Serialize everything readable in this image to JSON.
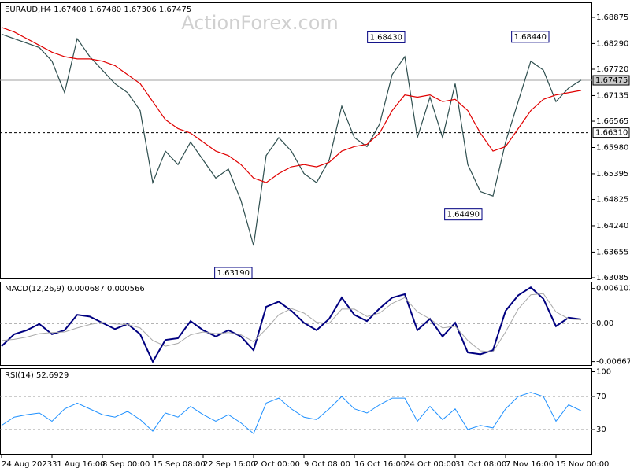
{
  "watermark": "ActionForex.com",
  "chart_data": [
    {
      "type": "line",
      "title": "EURAUD,H4  1.67408 1.67480 1.67306 1.67475",
      "ylim": [
        1.6305,
        1.69207
      ],
      "yticks": [
        1.68875,
        {
          "value": 1.6829,
          "label": "1.68290"
        },
        {
          "value": 1.6772,
          "label": "1.67720"
        },
        1.67135,
        1.66565,
        {
          "value": 1.6598,
          "label": "1.65980"
        },
        1.65395,
        1.64825,
        {
          "value": 1.6424,
          "label": "1.64240"
        },
        1.63655,
        1.63085
      ],
      "series": [
        {
          "color": "#2f4f4f",
          "values": [
            1.685,
            1.684,
            1.683,
            1.682,
            1.679,
            1.672,
            1.684,
            1.68,
            1.677,
            1.674,
            1.672,
            1.668,
            1.652,
            1.659,
            1.656,
            1.661,
            1.657,
            1.653,
            1.655,
            1.648,
            1.638,
            1.658,
            1.662,
            1.659,
            1.654,
            1.652,
            1.657,
            1.669,
            1.662,
            1.66,
            1.665,
            1.676,
            1.68,
            1.662,
            1.671,
            1.662,
            1.674,
            1.656,
            1.65,
            1.649,
            1.661,
            1.67,
            1.679,
            1.677,
            1.67,
            1.673,
            1.6748
          ]
        },
        {
          "color": "#e00000",
          "values": [
            1.6865,
            1.6855,
            1.684,
            1.6825,
            1.681,
            1.68,
            1.6795,
            1.6795,
            1.679,
            1.678,
            1.676,
            1.674,
            1.67,
            1.666,
            1.664,
            1.663,
            1.661,
            1.659,
            1.658,
            1.656,
            1.653,
            1.652,
            1.654,
            1.6555,
            1.656,
            1.6555,
            1.6565,
            1.659,
            1.66,
            1.6605,
            1.663,
            1.668,
            1.6715,
            1.671,
            1.6715,
            1.67,
            1.6705,
            1.668,
            1.663,
            1.659,
            1.66,
            1.664,
            1.668,
            1.6705,
            1.6715,
            1.672,
            1.6725
          ]
        }
      ],
      "hlines": [
        {
          "value": 1.67475,
          "color": "#a0a0a0",
          "dashed": false
        },
        {
          "value": {
            "value": 1.6631,
            "label": "1.66310"
          },
          "color": "#000000",
          "dashed": true
        }
      ],
      "annotations": [
        {
          "value": 1.6843,
          "label": "1.68430"
        },
        {
          "value": 1.6844,
          "label": "1.68440"
        },
        {
          "value": 1.6449,
          "label": "1.64490"
        },
        {
          "value": 1.6319,
          "label": "1.63190"
        }
      ]
    },
    {
      "type": "line",
      "title": "MACD(12,26,9) 0.000687 0.000566",
      "ylim": [
        -0.00742,
        0.0073
      ],
      "yticks": [
        0.006103,
        {
          "value": 0,
          "label": "0.00"
        },
        -0.006679
      ],
      "zero_line": true,
      "series": [
        {
          "color": "#000080",
          "width": 2,
          "values": [
            -0.004,
            -0.0019,
            -0.0012,
            -0.0001,
            -0.0019,
            -0.0012,
            0.0015,
            0.0012,
            0.0001,
            -0.001,
            -0.0001,
            -0.0019,
            -0.0067,
            -0.0029,
            -0.0026,
            0.0004,
            -0.0012,
            -0.0023,
            -0.0012,
            -0.0023,
            -0.0047,
            0.0029,
            0.0038,
            0.0022,
            0.0001,
            -0.0012,
            0.0008,
            0.0045,
            0.0015,
            0.0004,
            0.0026,
            0.0045,
            0.0051,
            -0.0012,
            0.0008,
            -0.0023,
            0.0001,
            -0.0051,
            -0.0054,
            -0.0047,
            0.0022,
            0.0049,
            0.0063,
            0.0043,
            -0.0005,
            0.001,
            0.0007
          ]
        },
        {
          "color": "#a9a9a9",
          "width": 1,
          "values": [
            -0.003,
            -0.0028,
            -0.0024,
            -0.0018,
            -0.0016,
            -0.0015,
            -0.0008,
            -0.0002,
            0.0002,
            -0.0001,
            -0.0002,
            -0.0008,
            -0.003,
            -0.004,
            -0.0035,
            -0.002,
            -0.0015,
            -0.0018,
            -0.0016,
            -0.002,
            -0.0032,
            -0.001,
            0.0015,
            0.0026,
            0.0018,
            0.0002,
            0,
            0.0025,
            0.0025,
            0.0012,
            0.0018,
            0.0035,
            0.0045,
            0.002,
            0.0008,
            -0.0008,
            -0.0005,
            -0.003,
            -0.0048,
            -0.005,
            -0.0015,
            0.0025,
            0.005,
            0.0052,
            0.002,
            0.0008,
            0.0006
          ]
        }
      ]
    },
    {
      "type": "line",
      "title": "RSI(14) 52.6929",
      "ylim": [
        -0.5,
        104.3
      ],
      "yticks": [
        100,
        70,
        30
      ],
      "dashed_levels": [
        70,
        30
      ],
      "categories": [
        "24 Aug 2023",
        null,
        null,
        null,
        "31 Aug 16:00",
        null,
        null,
        null,
        "8 Sep 00:00",
        null,
        null,
        null,
        "15 Sep 08:00",
        null,
        null,
        null,
        "22 Sep 16:00",
        null,
        null,
        null,
        "2 Oct 00:00",
        null,
        null,
        null,
        "9 Oct 08:00",
        null,
        null,
        null,
        "16 Oct 16:00",
        null,
        null,
        null,
        "24 Oct 00:00",
        null,
        null,
        null,
        "31 Oct 08:00",
        null,
        null,
        null,
        "7 Nov 16:00",
        null,
        null,
        null,
        "15 Nov 00:00",
        null,
        null
      ],
      "series": [
        {
          "color": "#1e90ff",
          "width": 1,
          "values": [
            35,
            45,
            48,
            50,
            40,
            55,
            62,
            55,
            48,
            45,
            52,
            42,
            28,
            50,
            45,
            58,
            48,
            40,
            48,
            38,
            25,
            62,
            68,
            55,
            45,
            42,
            55,
            70,
            55,
            50,
            60,
            68,
            68,
            40,
            58,
            42,
            55,
            30,
            35,
            32,
            55,
            70,
            75,
            70,
            40,
            60,
            52.7
          ]
        }
      ]
    }
  ]
}
